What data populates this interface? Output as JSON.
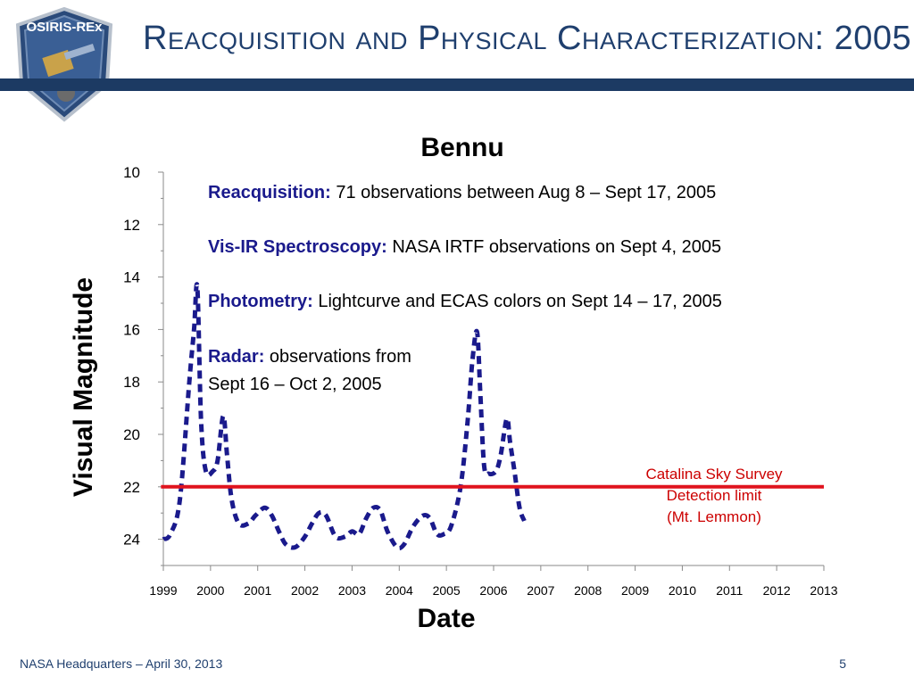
{
  "slide": {
    "title": "Reacquisition and Physical Characterization: 2005",
    "logo_text": "OSIRIS-REx",
    "footer_left": "NASA Headquarters – April 30, 2013",
    "page_number": "5"
  },
  "colors": {
    "title": "#1f3f6e",
    "band": "#1c3a63",
    "series": "#1a1a8c",
    "limit_line": "#e0141e",
    "annotation_label": "#1a1a8c"
  },
  "annotations": [
    {
      "label": "Reacquisition:",
      "text": " 71 observations between Aug 8 – Sept 17, 2005"
    },
    {
      "label": "Vis-IR Spectroscopy:",
      "text": " NASA IRTF observations on  Sept 4, 2005"
    },
    {
      "label": "Photometry:",
      "text": " Lightcurve and ECAS colors on Sept 14 – 17, 2005"
    },
    {
      "label": "Radar:",
      "text": " observations from",
      "text2": "Sept 16 – Oct 2, 2005"
    }
  ],
  "limit_label": [
    "Catalina Sky Survey",
    "Detection limit",
    "(Mt. Lemmon)"
  ],
  "chart_data": {
    "type": "line",
    "title": "Bennu",
    "xlabel": "Date",
    "ylabel": "Visual Magnitude",
    "xlim": [
      1999,
      2013
    ],
    "ylim": [
      25,
      10
    ],
    "y_inverted": true,
    "xticks": [
      "1999",
      "2000",
      "2001",
      "2002",
      "2003",
      "2004",
      "2005",
      "2006",
      "2007",
      "2008",
      "2009",
      "2010",
      "2011",
      "2012",
      "2013"
    ],
    "yticks": [
      "10",
      "12",
      "14",
      "16",
      "18",
      "20",
      "22",
      "24"
    ],
    "series": [
      {
        "style": "dashed",
        "x": [
          1999.0,
          1999.15,
          1999.35,
          1999.55,
          1999.65,
          1999.72,
          1999.8,
          1999.9,
          2000.05,
          2000.15,
          2000.27,
          2000.35,
          2000.45,
          2000.6,
          2000.8,
          2000.95,
          2001.15,
          2001.3,
          2001.45,
          2001.6,
          2001.8,
          2002.0,
          2002.15,
          2002.3,
          2002.45,
          2002.65,
          2002.85,
          2003.0,
          2003.15,
          2003.3,
          2003.45,
          2003.6,
          2003.75,
          2003.95,
          2004.1,
          2004.3,
          2004.5,
          2004.65,
          2004.8,
          2004.95,
          2005.1,
          2005.3,
          2005.45,
          2005.55,
          2005.65,
          2005.72,
          2005.8,
          2005.9,
          2006.05,
          2006.15,
          2006.28,
          2006.35,
          2006.45,
          2006.55,
          2006.65
        ],
        "y": [
          24.0,
          23.8,
          22.5,
          18.0,
          16.0,
          14.4,
          19.5,
          21.4,
          21.4,
          21.0,
          19.3,
          20.8,
          22.5,
          23.4,
          23.4,
          23.1,
          22.8,
          23.1,
          23.7,
          24.2,
          24.3,
          23.9,
          23.4,
          23.0,
          23.1,
          23.9,
          23.9,
          23.7,
          23.8,
          23.2,
          22.8,
          22.9,
          23.7,
          24.3,
          24.2,
          23.5,
          23.1,
          23.2,
          23.8,
          23.8,
          23.5,
          22.0,
          19.5,
          17.2,
          16.1,
          18.5,
          21.2,
          21.5,
          21.4,
          20.8,
          19.4,
          20.3,
          21.5,
          22.8,
          23.3
        ]
      }
    ],
    "limit_line": {
      "y": 22,
      "x_start": 1998.95,
      "x_end": 2013
    }
  }
}
